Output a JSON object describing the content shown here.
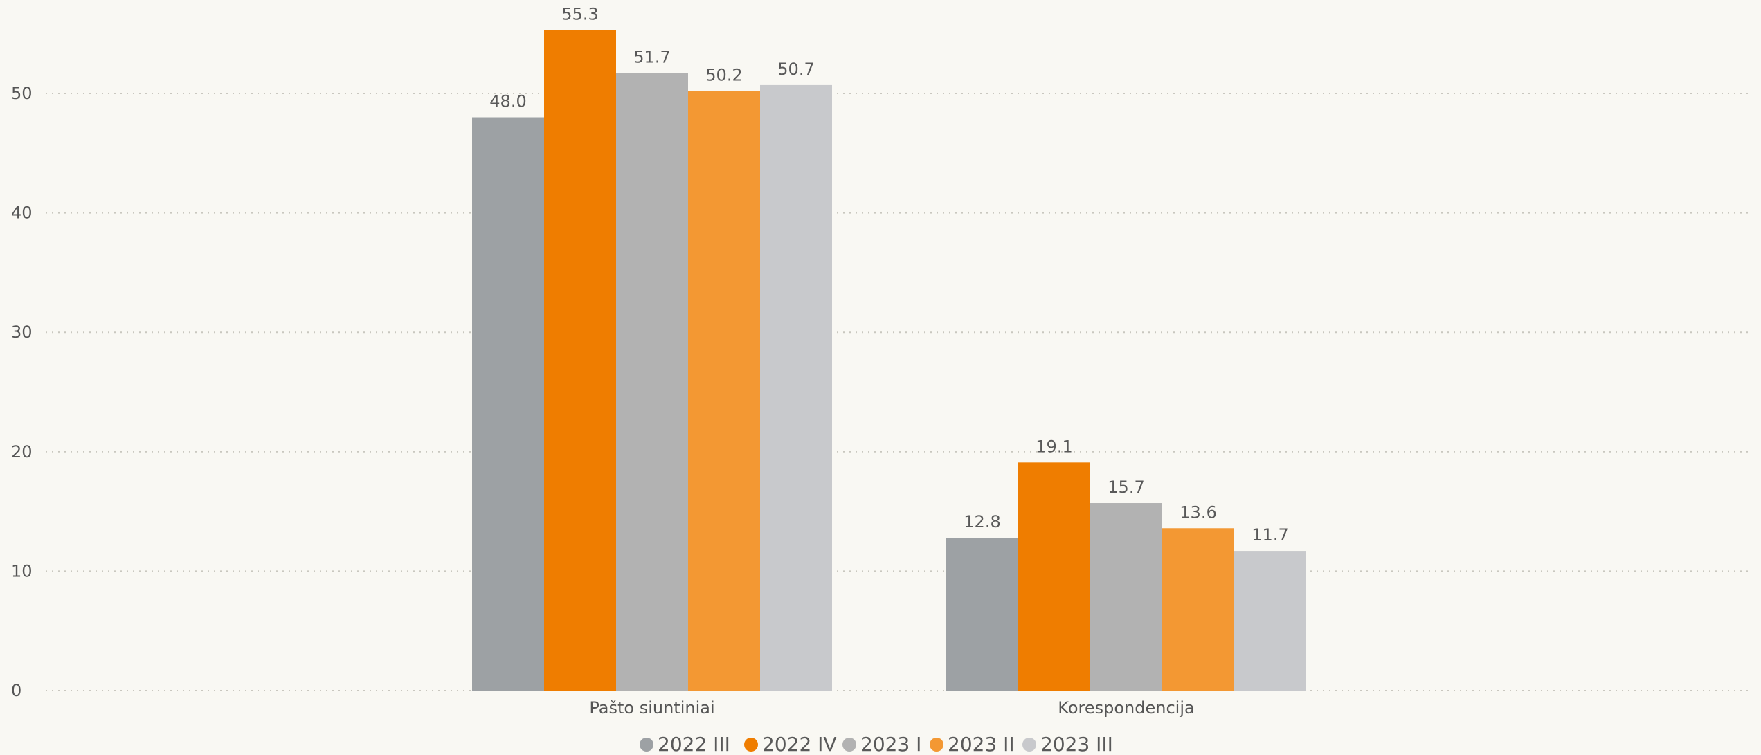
{
  "chart_data": {
    "type": "bar",
    "title": "",
    "xlabel": "",
    "ylabel": "",
    "categories": [
      "Pašto siuntiniai",
      "Korespondencija"
    ],
    "series": [
      {
        "name": "2022 III",
        "color": "#9da1a4",
        "values": [
          48.0,
          12.8
        ],
        "labels": [
          "48.0",
          "12.8"
        ]
      },
      {
        "name": "2022 IV",
        "color": "#ef7d00",
        "values": [
          55.3,
          19.1
        ],
        "labels": [
          "55.3",
          "19.1"
        ]
      },
      {
        "name": "2023 I",
        "color": "#b2b2b2",
        "values": [
          51.7,
          15.7
        ],
        "labels": [
          "51.7",
          "15.7"
        ]
      },
      {
        "name": "2023 II",
        "color": "#f39833",
        "values": [
          50.2,
          13.6
        ],
        "labels": [
          "50.2",
          "13.6"
        ]
      },
      {
        "name": "2023 III",
        "color": "#c8c9cc",
        "values": [
          50.7,
          11.7
        ],
        "labels": [
          "50.7",
          "11.7"
        ]
      }
    ],
    "yticks": [
      0,
      10,
      20,
      30,
      40,
      50
    ],
    "ytick_labels": [
      "0",
      "10",
      "20",
      "30",
      "40",
      "50"
    ],
    "ylim": [
      0,
      57
    ],
    "grid": true,
    "legend": "bottom-center"
  }
}
